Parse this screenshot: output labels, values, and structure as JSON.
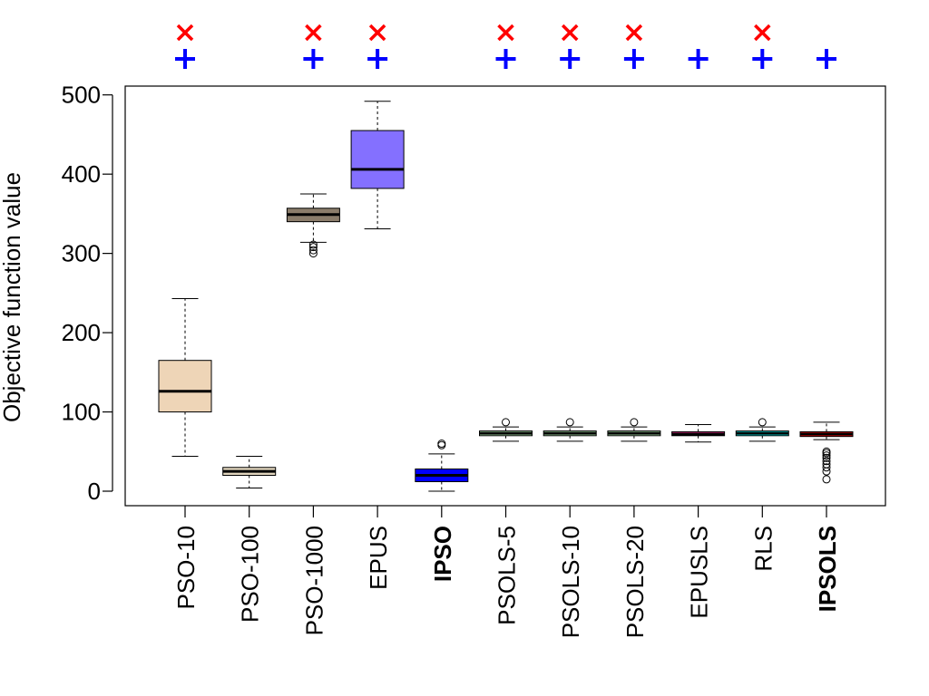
{
  "chart_data": {
    "type": "boxplot",
    "title": "",
    "xlabel": "",
    "ylabel": "Objective function value",
    "ylim": [
      -20,
      510
    ],
    "yticks": [
      0,
      100,
      200,
      300,
      400,
      500
    ],
    "grid": false,
    "categories": [
      "PSO-10",
      "PSO-100",
      "PSO-1000",
      "EPUS",
      "IPSO",
      "PSOLS-5",
      "PSOLS-10",
      "PSOLS-20",
      "EPUSLS",
      "RLS",
      "IPSOLS"
    ],
    "bold_categories": [
      "IPSO",
      "IPSOLS"
    ],
    "boxes": [
      {
        "name": "PSO-10",
        "fill": "#EED5B7",
        "whisker_low": 44,
        "q1": 100,
        "median": 126,
        "q3": 165,
        "whisker_high": 243,
        "outliers": []
      },
      {
        "name": "PSO-100",
        "fill": "#E2D6BE",
        "whisker_low": 4,
        "q1": 20,
        "median": 25,
        "q3": 30,
        "whisker_high": 44,
        "outliers": []
      },
      {
        "name": "PSO-1000",
        "fill": "#8B7D6B",
        "whisker_low": 314,
        "q1": 340,
        "median": 349,
        "q3": 357,
        "whisker_high": 375,
        "outliers": [
          300,
          304,
          308,
          311
        ]
      },
      {
        "name": "EPUS",
        "fill": "#8470FF",
        "whisker_low": 331,
        "q1": 382,
        "median": 406,
        "q3": 455,
        "whisker_high": 492,
        "outliers": []
      },
      {
        "name": "IPSO",
        "fill": "#0000FF",
        "whisker_low": 0,
        "q1": 12,
        "median": 20,
        "q3": 28,
        "whisker_high": 47,
        "outliers": [
          58,
          60
        ]
      },
      {
        "name": "PSOLS-5",
        "fill": "#C1FFC1",
        "whisker_low": 63,
        "q1": 70,
        "median": 73,
        "q3": 76,
        "whisker_high": 81,
        "outliers": [
          87
        ]
      },
      {
        "name": "PSOLS-10",
        "fill": "#C1FFC1",
        "whisker_low": 63,
        "q1": 70,
        "median": 73,
        "q3": 76,
        "whisker_high": 81,
        "outliers": [
          87
        ]
      },
      {
        "name": "PSOLS-20",
        "fill": "#C1FFC1",
        "whisker_low": 63,
        "q1": 70,
        "median": 73,
        "q3": 76,
        "whisker_high": 81,
        "outliers": [
          87
        ]
      },
      {
        "name": "EPUSLS",
        "fill": "#FF3399",
        "whisker_low": 62,
        "q1": 70,
        "median": 72,
        "q3": 75,
        "whisker_high": 84,
        "outliers": []
      },
      {
        "name": "RLS",
        "fill": "#00FFFF",
        "whisker_low": 63,
        "q1": 70,
        "median": 73,
        "q3": 76,
        "whisker_high": 81,
        "outliers": [
          87
        ]
      },
      {
        "name": "IPSOLS",
        "fill": "#FF0000",
        "whisker_low": 65,
        "q1": 69,
        "median": 72,
        "q3": 75,
        "whisker_high": 87,
        "outliers": [
          15,
          25,
          30,
          34,
          38,
          42,
          45,
          48,
          50
        ]
      }
    ],
    "markers": {
      "cross": {
        "color": "#FF0000",
        "categories": [
          "PSO-10",
          "PSO-1000",
          "EPUS",
          "PSOLS-5",
          "PSOLS-10",
          "PSOLS-20",
          "RLS"
        ]
      },
      "plus": {
        "color": "#0000FF",
        "categories": [
          "PSO-10",
          "PSO-1000",
          "EPUS",
          "PSOLS-5",
          "PSOLS-10",
          "PSOLS-20",
          "EPUSLS",
          "RLS",
          "IPSOLS"
        ]
      }
    }
  }
}
